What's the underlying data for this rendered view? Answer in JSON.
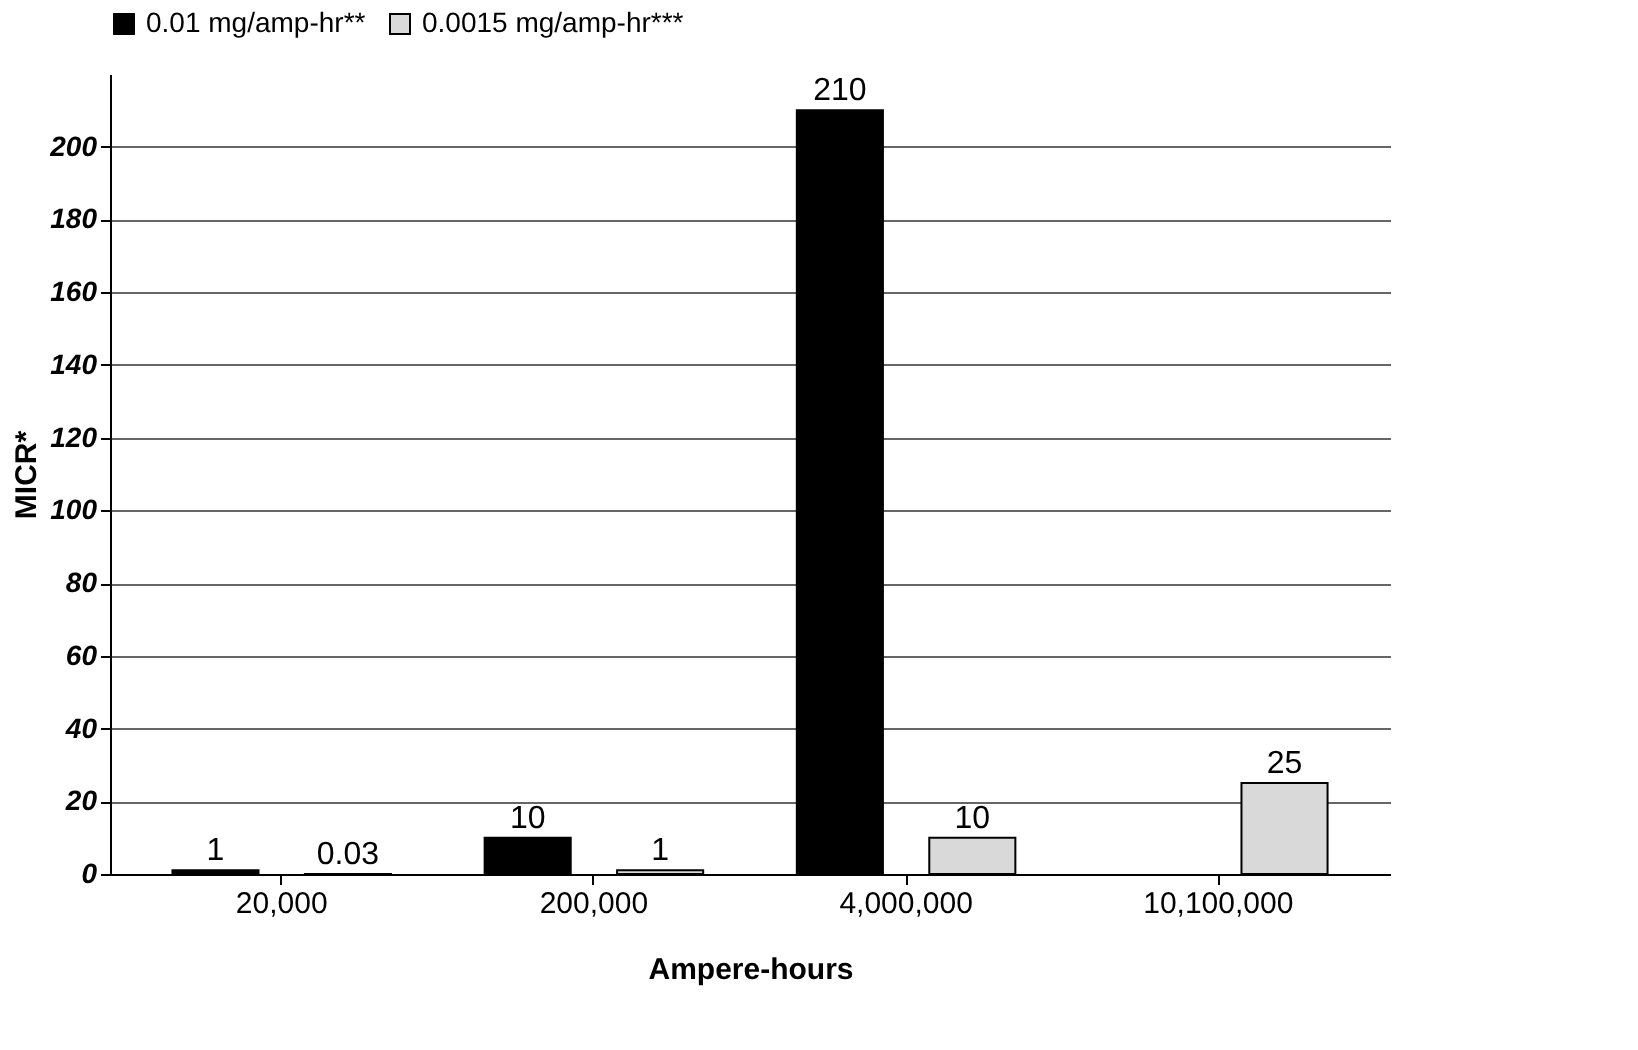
{
  "chart_data": {
    "type": "bar",
    "xlabel": "Ampere-hours",
    "ylabel": "MICR*",
    "categories": [
      "20,000",
      "200,000",
      "4,000,000",
      "10,100,000"
    ],
    "series": [
      {
        "name": "0.01 mg/amp-hr**",
        "color": "#000000",
        "values": [
          1,
          10,
          210,
          null
        ]
      },
      {
        "name": "0.0015 mg/amp-hr***",
        "color": "#d9d9d9",
        "values": [
          0.03,
          1,
          10,
          25
        ]
      }
    ],
    "ylim": [
      0,
      220
    ],
    "yticks": [
      0,
      20,
      40,
      60,
      80,
      100,
      120,
      140,
      160,
      180,
      200
    ],
    "grid": "y",
    "legend": "top",
    "data_labels": true
  }
}
